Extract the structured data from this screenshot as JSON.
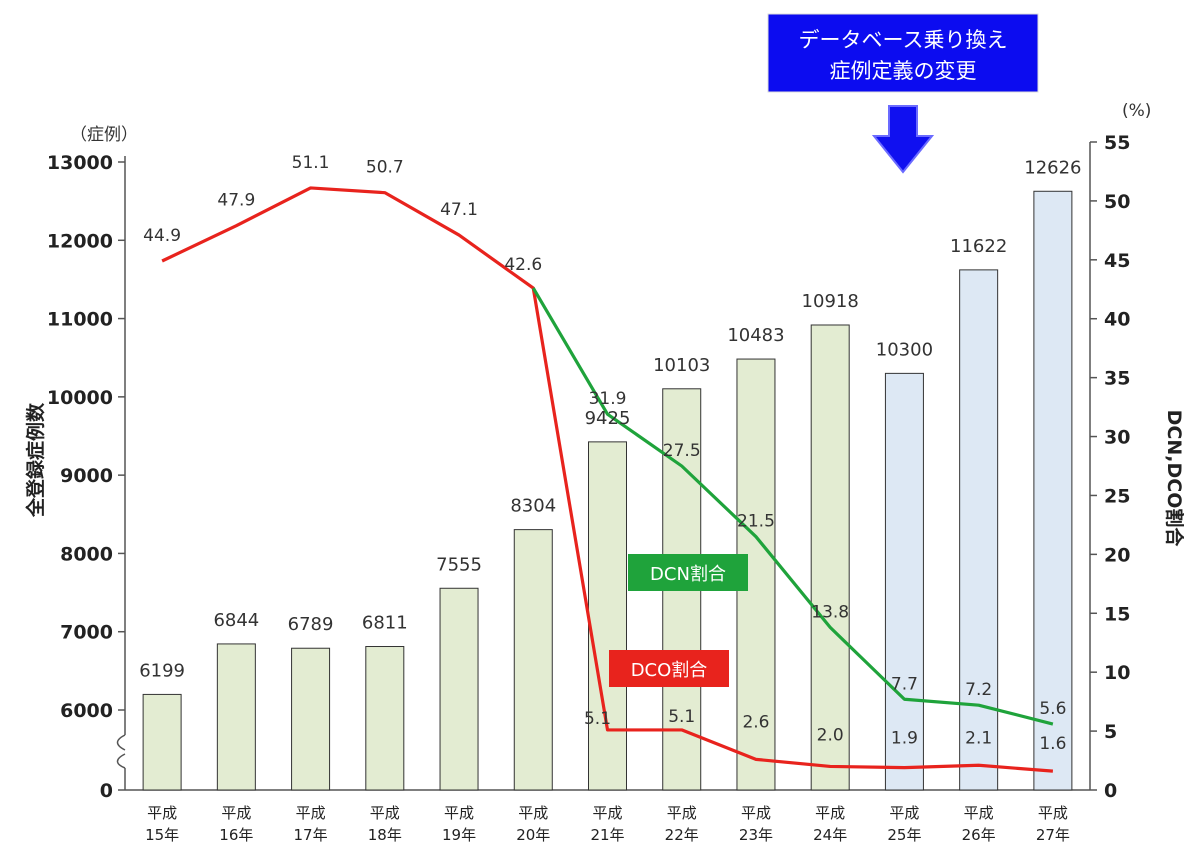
{
  "chart_data": {
    "type": "bar",
    "categories": [
      [
        "平成",
        "15年"
      ],
      [
        "平成",
        "16年"
      ],
      [
        "平成",
        "17年"
      ],
      [
        "平成",
        "18年"
      ],
      [
        "平成",
        "19年"
      ],
      [
        "平成",
        "20年"
      ],
      [
        "平成",
        "21年"
      ],
      [
        "平成",
        "22年"
      ],
      [
        "平成",
        "23年"
      ],
      [
        "平成",
        "24年"
      ],
      [
        "平成",
        "25年"
      ],
      [
        "平成",
        "26年"
      ],
      [
        "平成",
        "27年"
      ]
    ],
    "bar_series": {
      "values": [
        6199,
        6844,
        6789,
        6811,
        7555,
        8304,
        9425,
        10103,
        10483,
        10918,
        10300,
        11622,
        12626
      ],
      "labels": [
        "6199",
        "6844",
        "6789",
        "6811",
        "7555",
        "8304",
        "9425",
        "10103",
        "10483",
        "10918",
        "10300",
        "11622",
        "12626"
      ],
      "colors": [
        "#e3ecd2",
        "#e3ecd2",
        "#e3ecd2",
        "#e3ecd2",
        "#e3ecd2",
        "#e3ecd2",
        "#e3ecd2",
        "#e3ecd2",
        "#e3ecd2",
        "#e3ecd2",
        "#dde8f4",
        "#dde8f4",
        "#dde8f4"
      ]
    },
    "line_series": [
      {
        "name": "DCO割合",
        "color": "#e8231d",
        "values": [
          44.9,
          47.9,
          51.1,
          50.7,
          47.1,
          42.6,
          5.1,
          5.1,
          2.6,
          2.0,
          1.9,
          2.1,
          1.6
        ],
        "labels": [
          "44.9",
          "47.9",
          "51.1",
          "50.7",
          "47.1",
          "42.6",
          "5.1",
          "5.1",
          "2.6",
          "2.0",
          "1.9",
          "2.1",
          "1.6"
        ]
      },
      {
        "name": "DCN割合",
        "color": "#1fa33b",
        "start_index": 5,
        "values": [
          42.6,
          31.9,
          27.5,
          21.5,
          13.8,
          7.7,
          7.2,
          5.6
        ],
        "labels": [
          "",
          "31.9",
          "27.5",
          "21.5",
          "13.8",
          "7.7",
          "7.2",
          "5.6"
        ]
      }
    ],
    "y_left": {
      "title": "全登録症例数",
      "unit": "（症例）",
      "ticks": [
        0,
        6000,
        7000,
        8000,
        9000,
        10000,
        11000,
        12000,
        13000
      ],
      "tick_labels": [
        "0",
        "6000",
        "7000",
        "8000",
        "9000",
        "10000",
        "11000",
        "12000",
        "13000"
      ],
      "broken_axis": true,
      "break_from": 0,
      "break_to": 5500
    },
    "y_right": {
      "title": "DCN,DCO割合",
      "unit": "(%)",
      "ylim": [
        0,
        55
      ],
      "ticks": [
        0,
        5,
        10,
        15,
        20,
        25,
        30,
        35,
        40,
        45,
        50,
        55
      ],
      "tick_labels": [
        "0",
        "5",
        "10",
        "15",
        "20",
        "25",
        "30",
        "35",
        "40",
        "45",
        "50",
        "55"
      ]
    },
    "annotation": {
      "lines": [
        "データベース乗り換え",
        "症例定義の変更"
      ],
      "bg": "#0c0cf0",
      "arrow_color": "#1010f0"
    }
  }
}
